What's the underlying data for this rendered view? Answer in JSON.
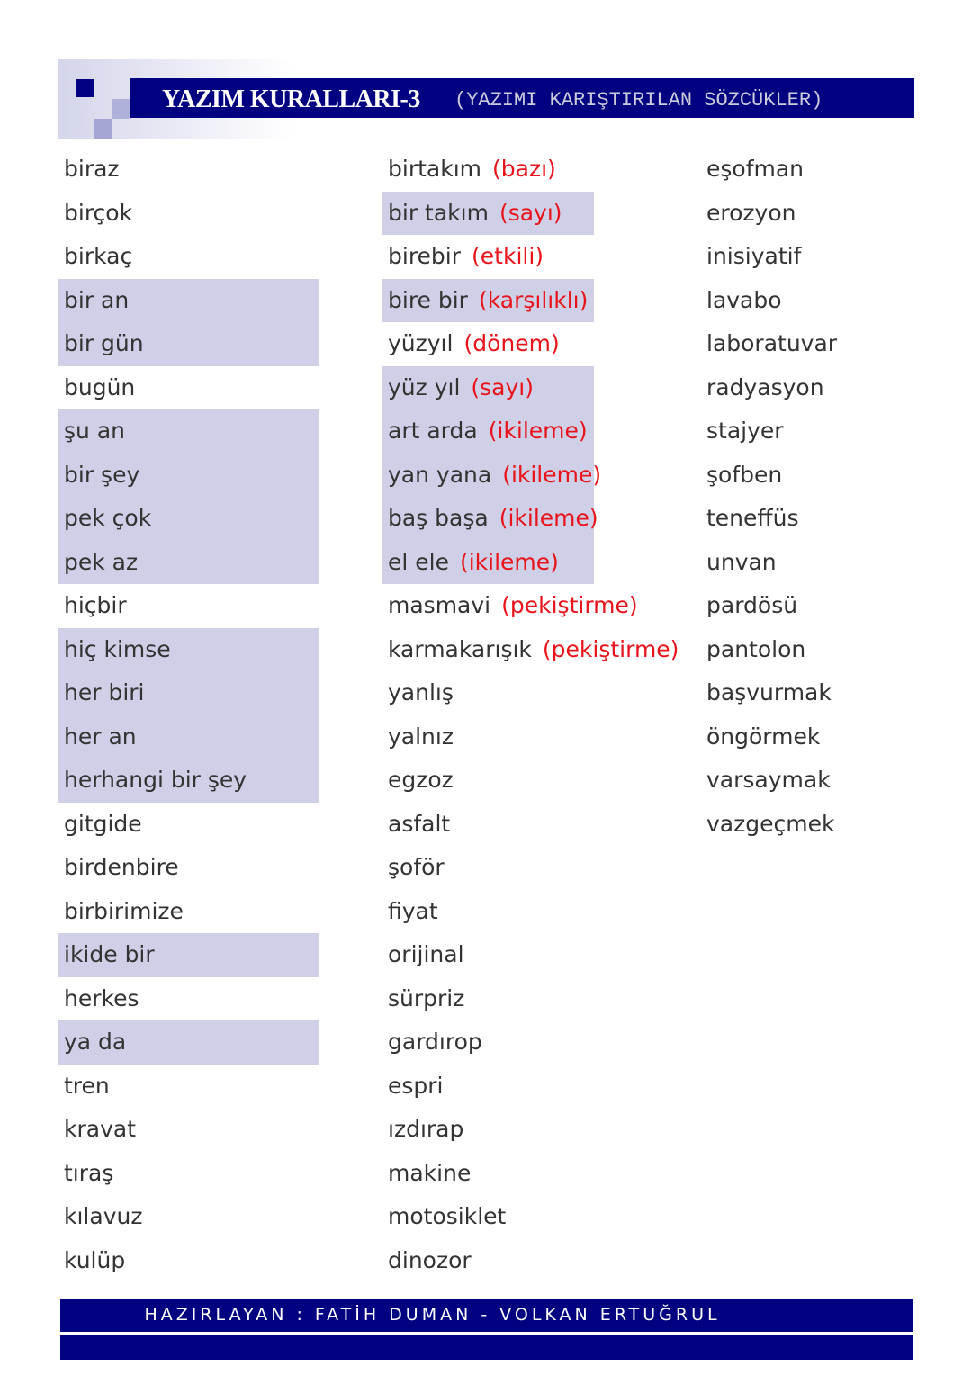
{
  "header": {
    "title": "YAZIM KURALLARI-3",
    "subtitle": "(YAZIMI KARIŞTIRILAN SÖZCÜKLER)"
  },
  "columns": [
    [
      {
        "text": "biraz",
        "hl": false
      },
      {
        "text": "birçok",
        "hl": false
      },
      {
        "text": "birkaç",
        "hl": false
      },
      {
        "text": "bir an",
        "hl": true
      },
      {
        "text": "bir gün",
        "hl": true
      },
      {
        "text": "bugün",
        "hl": false
      },
      {
        "text": "şu an",
        "hl": true
      },
      {
        "text": "bir şey",
        "hl": true
      },
      {
        "text": "pek çok",
        "hl": true
      },
      {
        "text": "pek az",
        "hl": true
      },
      {
        "text": "hiçbir",
        "hl": false
      },
      {
        "text": "hiç kimse",
        "hl": true
      },
      {
        "text": "her biri",
        "hl": true
      },
      {
        "text": "her an",
        "hl": true
      },
      {
        "text": "herhangi bir şey",
        "hl": true
      },
      {
        "text": "gitgide",
        "hl": false
      },
      {
        "text": "birdenbire",
        "hl": false
      },
      {
        "text": "birbirimize",
        "hl": false
      },
      {
        "text": "ikide bir",
        "hl": true
      },
      {
        "text": "herkes",
        "hl": false
      },
      {
        "text": "ya da",
        "hl": true
      },
      {
        "text": "tren",
        "hl": false
      },
      {
        "text": "kravat",
        "hl": false
      },
      {
        "text": "tıraş",
        "hl": false
      },
      {
        "text": "kılavuz",
        "hl": false
      },
      {
        "text": "kulüp",
        "hl": false
      }
    ],
    [
      {
        "text": "birtakım",
        "note": "(bazı)",
        "hl": false
      },
      {
        "text": "bir takım",
        "note": "(sayı)",
        "hl": true
      },
      {
        "text": "birebir",
        "note": "(etkili)",
        "hl": false
      },
      {
        "text": "bire bir",
        "note": "(karşılıklı)",
        "hl": true
      },
      {
        "text": "yüzyıl",
        "note": "(dönem)",
        "hl": false
      },
      {
        "text": "yüz yıl",
        "note": "(sayı)",
        "hl": true
      },
      {
        "text": "art arda",
        "note": "(ikileme)",
        "hl": true
      },
      {
        "text": "yan yana",
        "note": "(ikileme)",
        "hl": true
      },
      {
        "text": "baş başa",
        "note": "(ikileme)",
        "hl": true
      },
      {
        "text": "el ele",
        "note": "(ikileme)",
        "hl": true
      },
      {
        "text": "masmavi",
        "note": "(pekiştirme)",
        "hl": false
      },
      {
        "text": "karmakarışık",
        "note": "(pekiştirme)",
        "hl": false
      },
      {
        "text": "yanlış",
        "hl": false
      },
      {
        "text": "yalnız",
        "hl": false
      },
      {
        "text": "egzoz",
        "hl": false
      },
      {
        "text": "asfalt",
        "hl": false
      },
      {
        "text": "şoför",
        "hl": false
      },
      {
        "text": "fiyat",
        "hl": false
      },
      {
        "text": "orijinal",
        "hl": false
      },
      {
        "text": "sürpriz",
        "hl": false
      },
      {
        "text": "gardırop",
        "hl": false
      },
      {
        "text": "espri",
        "hl": false
      },
      {
        "text": "ızdırap",
        "hl": false
      },
      {
        "text": "makine",
        "hl": false
      },
      {
        "text": "motosiklet",
        "hl": false
      },
      {
        "text": "dinozor",
        "hl": false
      }
    ],
    [
      {
        "text": "eşofman",
        "hl": false
      },
      {
        "text": "erozyon",
        "hl": false
      },
      {
        "text": "inisiyatif",
        "hl": false
      },
      {
        "text": "lavabo",
        "hl": false
      },
      {
        "text": "laboratuvar",
        "hl": false
      },
      {
        "text": "radyasyon",
        "hl": false
      },
      {
        "text": "stajyer",
        "hl": false
      },
      {
        "text": "şofben",
        "hl": false
      },
      {
        "text": "teneffüs",
        "hl": false
      },
      {
        "text": "unvan",
        "hl": false
      },
      {
        "text": "pardösü",
        "hl": false
      },
      {
        "text": "pantolon",
        "hl": false
      },
      {
        "text": "başvurmak",
        "hl": false
      },
      {
        "text": "öngörmek",
        "hl": false
      },
      {
        "text": "varsaymak",
        "hl": false
      },
      {
        "text": "vazgeçmek",
        "hl": false
      }
    ]
  ],
  "footer": {
    "text": "HAZIRLAYAN : FATİH DUMAN  - VOLKAN ERTUĞRUL"
  },
  "colors": {
    "navy": "#000080",
    "highlight": "#cfd0e8",
    "note": "#e8131b"
  }
}
